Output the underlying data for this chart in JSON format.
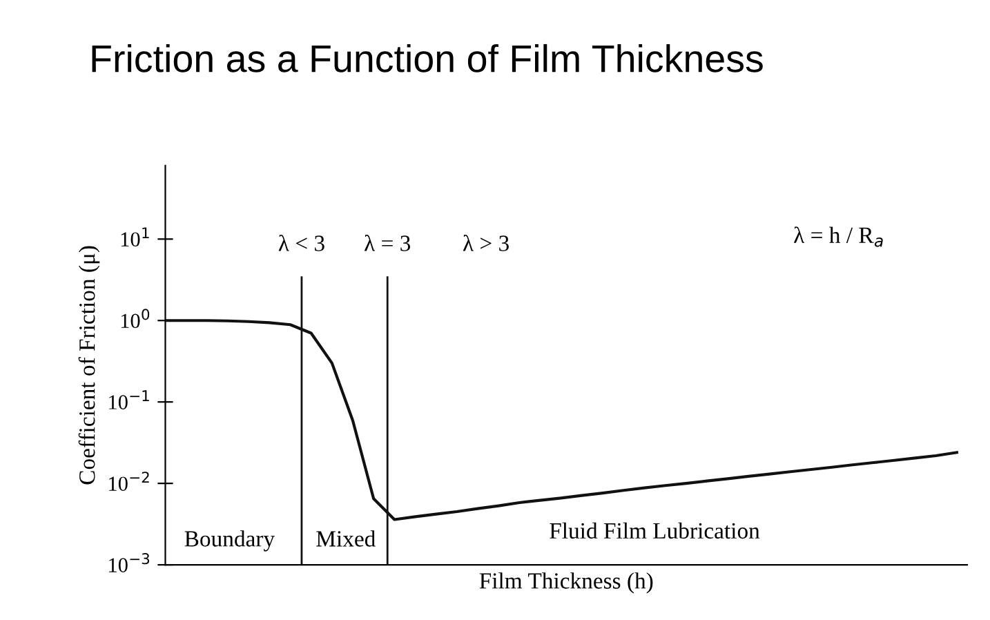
{
  "chart_data": {
    "type": "line",
    "title": "Friction as a Function of Film Thickness",
    "xlabel": "Film Thickness (h)",
    "ylabel": "Coefficient of Friction (μ)",
    "categories": [
      null,
      null,
      null,
      null,
      null,
      null,
      null,
      null,
      null,
      null,
      null,
      null,
      null,
      null,
      null,
      null,
      null,
      null,
      null,
      null,
      null,
      null,
      null,
      null,
      null,
      null,
      null,
      null,
      null,
      null,
      null,
      null,
      null,
      null,
      null,
      null,
      null,
      null,
      null
    ],
    "series": [
      {
        "color": "#111111",
        "values": [
          1.0,
          1.0,
          1.0,
          0.99,
          0.97,
          0.94,
          0.89,
          0.7,
          0.3,
          0.059,
          0.0065,
          0.0036,
          0.0039,
          0.0042,
          0.0045,
          0.0049,
          0.0053,
          0.0058,
          0.0062,
          0.0066,
          0.0071,
          0.0076,
          0.0082,
          0.0088,
          0.0094,
          0.01,
          0.0107,
          0.0114,
          0.0122,
          0.013,
          0.0139,
          0.0148,
          0.0158,
          0.0169,
          0.018,
          0.0192,
          0.0205,
          0.0219,
          0.024
        ]
      }
    ],
    "log": "y",
    "ylim": [
      0.001,
      80
    ],
    "yticks": [
      {
        "value": 0.001,
        "label": "10$^{−3}$"
      },
      {
        "value": 0.01,
        "label": "10$^{−2}$"
      },
      {
        "value": 0.1,
        "label": "10$^{−1}$"
      },
      {
        "value": 1,
        "label": "10$^{0}$"
      },
      {
        "value": 10,
        "label": "10$^{1}$"
      }
    ],
    "tick_labels": "y",
    "grid": false,
    "marker": "none",
    "line_style": "solid",
    "annotations": [
      "λ < 3",
      "λ = 3",
      "λ > 3",
      "λ = h / R$_{a}$",
      "Boundary",
      "Mixed",
      "Fluid Film Lubrication"
    ]
  }
}
